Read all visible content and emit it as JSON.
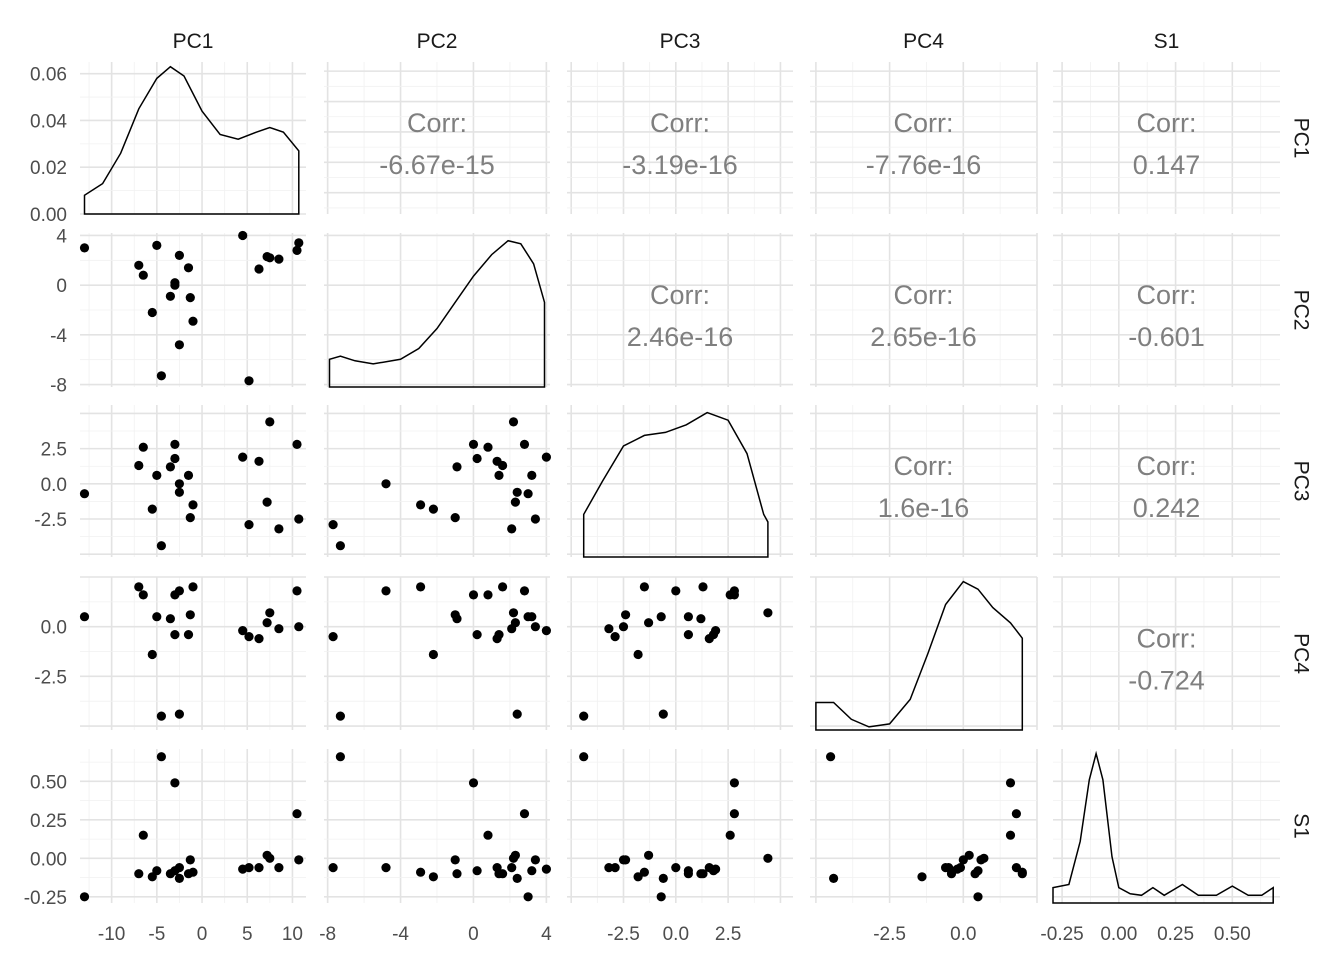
{
  "chart_data": {
    "type": "scatter",
    "variables": [
      "PC1",
      "PC2",
      "PC3",
      "PC4",
      "S1"
    ],
    "axis_ranges": {
      "PC1": [
        -13.5,
        11.5
      ],
      "PC2": [
        -8.2,
        4.2
      ],
      "PC3": [
        -5.2,
        5.6
      ],
      "PC4": [
        -5.2,
        2.5
      ],
      "S1": [
        -0.29,
        0.71
      ]
    },
    "ticks": {
      "PC1": {
        "values": [
          -10,
          -5,
          0,
          5,
          10
        ],
        "labels": [
          "-10",
          "-5",
          "0",
          "5",
          "10"
        ]
      },
      "PC2": {
        "values": [
          -8,
          -4,
          0,
          4
        ],
        "labels": [
          "-8",
          "-4",
          "0",
          "4"
        ]
      },
      "PC3": {
        "values": [
          -2.5,
          0,
          2.5
        ],
        "labels": [
          "-2.5",
          "0.0",
          "2.5"
        ]
      },
      "PC4": {
        "values": [
          -2.5,
          0
        ],
        "labels": [
          "-2.5",
          "0.0"
        ]
      },
      "S1": {
        "values": [
          -0.25,
          0,
          0.25,
          0.5
        ],
        "labels": [
          "-0.25",
          "0.00",
          "0.25",
          "0.50"
        ]
      }
    },
    "density_y_ticks": {
      "values": [
        0,
        0.02,
        0.04,
        0.06
      ],
      "labels": [
        "0.00",
        "0.02",
        "0.04",
        "0.06"
      ]
    },
    "density_ylim": [
      0,
      0.065
    ],
    "correlation_label": "Corr:",
    "correlations": [
      {
        "row": "PC1",
        "col": "PC2",
        "value": "-6.67e-15"
      },
      {
        "row": "PC1",
        "col": "PC3",
        "value": "-3.19e-16"
      },
      {
        "row": "PC1",
        "col": "PC4",
        "value": "-7.76e-16"
      },
      {
        "row": "PC1",
        "col": "S1",
        "value": "0.147"
      },
      {
        "row": "PC2",
        "col": "PC3",
        "value": "2.46e-16"
      },
      {
        "row": "PC2",
        "col": "PC4",
        "value": "2.65e-16"
      },
      {
        "row": "PC2",
        "col": "S1",
        "value": "-0.601"
      },
      {
        "row": "PC3",
        "col": "PC4",
        "value": "1.6e-16"
      },
      {
        "row": "PC3",
        "col": "S1",
        "value": "0.242"
      },
      {
        "row": "PC4",
        "col": "S1",
        "value": "-0.724"
      }
    ],
    "points": {
      "PC1": [
        -13,
        -7,
        -6.5,
        -5.5,
        -5,
        -4.5,
        -3.5,
        -3,
        -3,
        -2.5,
        -2.5,
        -1.5,
        -1.3,
        -1,
        4.5,
        5.2,
        6.3,
        7.2,
        7.5,
        8.5,
        10.5,
        10.7
      ],
      "PC2": [
        3,
        1.6,
        0.8,
        -2.2,
        3.2,
        -7.3,
        -0.9,
        0.2,
        0,
        2.4,
        -4.8,
        1.4,
        -1,
        -2.9,
        4,
        -7.7,
        1.3,
        2.3,
        2.2,
        2.1,
        2.8,
        3.4
      ],
      "PC3": [
        -0.7,
        1.3,
        2.6,
        -1.8,
        0.6,
        -4.4,
        1.2,
        1.8,
        2.8,
        -0.6,
        0,
        0.6,
        -2.4,
        -1.5,
        1.9,
        -2.9,
        1.6,
        -1.3,
        4.4,
        -3.2,
        2.8,
        -2.5
      ],
      "PC4": [
        0.5,
        2.0,
        1.6,
        -1.4,
        0.5,
        -4.5,
        0.4,
        -0.4,
        1.6,
        -4.4,
        1.8,
        -0.4,
        0.6,
        2.0,
        -0.2,
        -0.5,
        -0.6,
        0.2,
        0.7,
        -0.1,
        1.8,
        0
      ],
      "S1": [
        -0.25,
        -0.1,
        0.15,
        -0.12,
        -0.08,
        0.66,
        -0.1,
        -0.08,
        0.49,
        -0.13,
        -0.06,
        -0.1,
        -0.01,
        -0.09,
        -0.07,
        -0.06,
        -0.06,
        0.02,
        0,
        -0.06,
        0.29,
        -0.01
      ]
    },
    "density_curves": {
      "PC1": [
        [
          -13,
          0.008
        ],
        [
          -11,
          0.013
        ],
        [
          -9,
          0.026
        ],
        [
          -7,
          0.045
        ],
        [
          -5,
          0.058
        ],
        [
          -3.5,
          0.063
        ],
        [
          -2,
          0.059
        ],
        [
          0,
          0.044
        ],
        [
          2,
          0.034
        ],
        [
          4,
          0.032
        ],
        [
          6,
          0.035
        ],
        [
          7.5,
          0.037
        ],
        [
          9,
          0.035
        ],
        [
          10.7,
          0.027
        ]
      ],
      "PC2": [
        [
          -7.9,
          0.18
        ],
        [
          -7.3,
          0.2
        ],
        [
          -6.5,
          0.17
        ],
        [
          -5.5,
          0.15
        ],
        [
          -4,
          0.18
        ],
        [
          -3,
          0.25
        ],
        [
          -2,
          0.38
        ],
        [
          -1,
          0.55
        ],
        [
          0,
          0.72
        ],
        [
          1,
          0.86
        ],
        [
          1.9,
          0.95
        ],
        [
          2.6,
          0.93
        ],
        [
          3.3,
          0.8
        ],
        [
          3.9,
          0.55
        ]
      ],
      "PC3": [
        [
          -4.4,
          0.28
        ],
        [
          -3.5,
          0.5
        ],
        [
          -2.5,
          0.73
        ],
        [
          -1.5,
          0.8
        ],
        [
          -0.5,
          0.82
        ],
        [
          0.5,
          0.87
        ],
        [
          1.5,
          0.95
        ],
        [
          2.5,
          0.9
        ],
        [
          3.4,
          0.68
        ],
        [
          4.2,
          0.28
        ],
        [
          4.4,
          0.23
        ]
      ],
      "PC4": [
        [
          -5.0,
          0.18
        ],
        [
          -4.4,
          0.18
        ],
        [
          -3.8,
          0.07
        ],
        [
          -3.2,
          0.02
        ],
        [
          -2.5,
          0.04
        ],
        [
          -1.8,
          0.2
        ],
        [
          -1.2,
          0.5
        ],
        [
          -0.6,
          0.82
        ],
        [
          0,
          0.97
        ],
        [
          0.5,
          0.92
        ],
        [
          1.0,
          0.8
        ],
        [
          1.6,
          0.7
        ],
        [
          2.0,
          0.6
        ]
      ],
      "S1": [
        [
          -0.29,
          0.1
        ],
        [
          -0.22,
          0.12
        ],
        [
          -0.17,
          0.4
        ],
        [
          -0.13,
          0.8
        ],
        [
          -0.1,
          0.97
        ],
        [
          -0.07,
          0.8
        ],
        [
          -0.03,
          0.3
        ],
        [
          0,
          0.1
        ],
        [
          0.05,
          0.06
        ],
        [
          0.1,
          0.05
        ],
        [
          0.15,
          0.1
        ],
        [
          0.2,
          0.05
        ],
        [
          0.28,
          0.12
        ],
        [
          0.35,
          0.05
        ],
        [
          0.43,
          0.05
        ],
        [
          0.5,
          0.11
        ],
        [
          0.57,
          0.05
        ],
        [
          0.63,
          0.05
        ],
        [
          0.68,
          0.1
        ]
      ]
    },
    "grid": true
  }
}
